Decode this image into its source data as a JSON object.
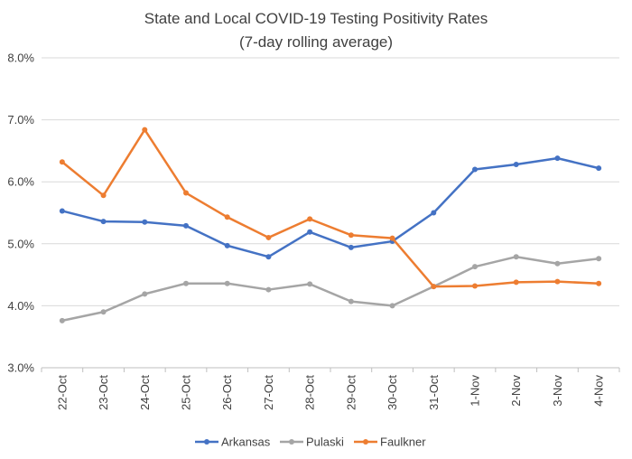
{
  "chart_data": {
    "type": "line",
    "title": "State and Local COVID-19 Testing Positivity Rates",
    "subtitle": "(7-day rolling average)",
    "xlabel": "",
    "ylabel": "",
    "ylim": [
      3.0,
      8.0
    ],
    "yticks": [
      "3.0%",
      "4.0%",
      "5.0%",
      "6.0%",
      "7.0%",
      "8.0%"
    ],
    "ytick_values": [
      3.0,
      4.0,
      5.0,
      6.0,
      7.0,
      8.0
    ],
    "grid": true,
    "legend_position": "bottom",
    "categories": [
      "22-Oct",
      "23-Oct",
      "24-Oct",
      "25-Oct",
      "26-Oct",
      "27-Oct",
      "28-Oct",
      "29-Oct",
      "30-Oct",
      "31-Oct",
      "1-Nov",
      "2-Nov",
      "3-Nov",
      "4-Nov"
    ],
    "series": [
      {
        "name": "Arkansas",
        "color": "#4472C4",
        "values": [
          5.53,
          5.36,
          5.35,
          5.29,
          4.97,
          4.79,
          5.19,
          4.94,
          5.04,
          5.5,
          6.2,
          6.28,
          6.38,
          6.22
        ]
      },
      {
        "name": "Pulaski",
        "color": "#A5A5A5",
        "values": [
          3.76,
          3.9,
          4.19,
          4.36,
          4.36,
          4.26,
          4.35,
          4.07,
          4.0,
          4.31,
          4.63,
          4.79,
          4.68,
          4.76
        ]
      },
      {
        "name": "Faulkner",
        "color": "#ED7D31",
        "values": [
          6.32,
          5.78,
          6.84,
          5.82,
          5.43,
          5.1,
          5.4,
          5.14,
          5.09,
          4.31,
          4.32,
          4.38,
          4.39,
          4.36
        ]
      }
    ]
  }
}
